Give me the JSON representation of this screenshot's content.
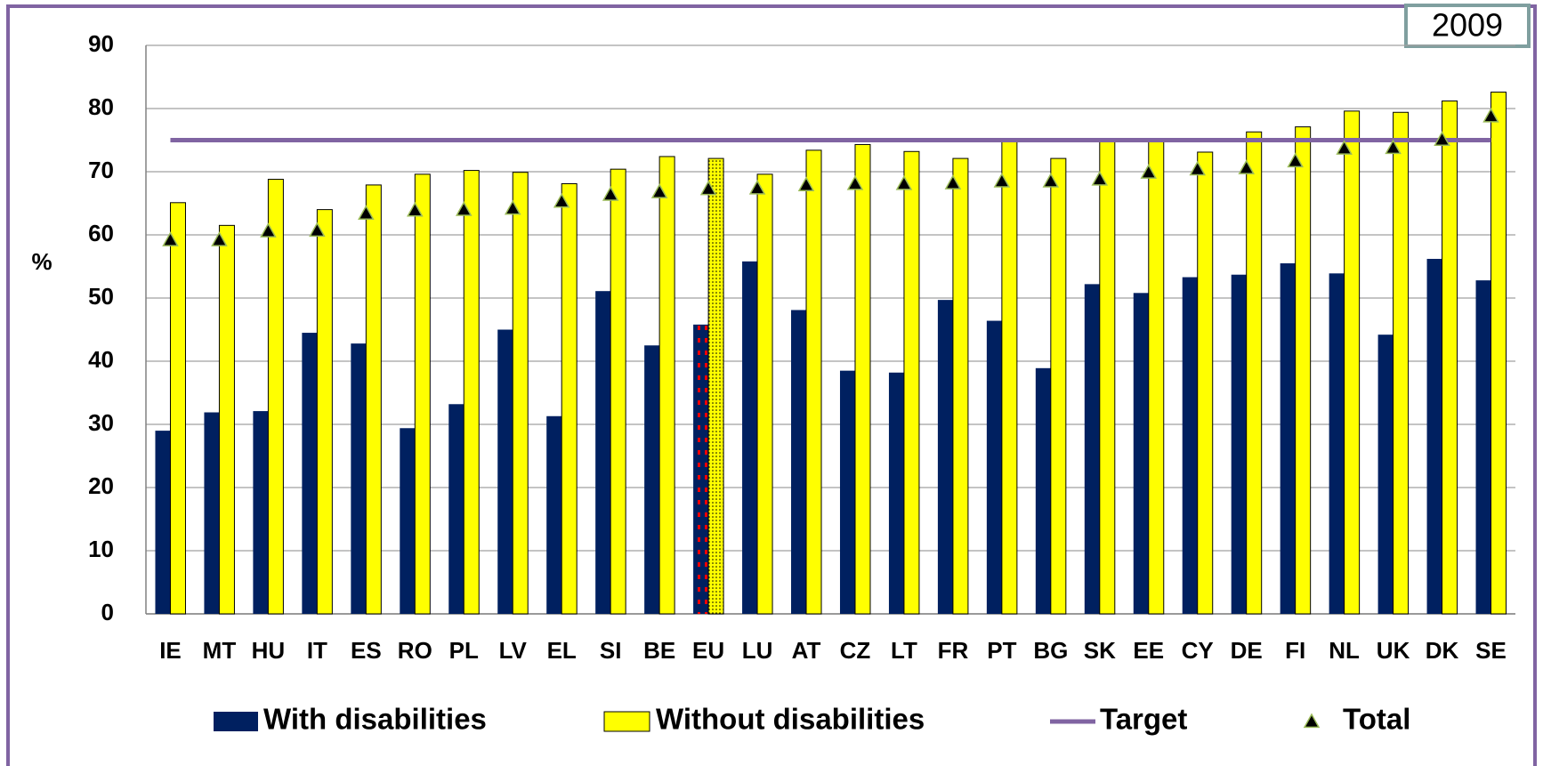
{
  "chart_data": {
    "type": "bar",
    "year_label": "2009",
    "y_label": "%",
    "categories": [
      "IE",
      "MT",
      "HU",
      "IT",
      "ES",
      "RO",
      "PL",
      "LV",
      "EL",
      "SI",
      "BE",
      "EU",
      "LU",
      "AT",
      "CZ",
      "LT",
      "FR",
      "PT",
      "BG",
      "SK",
      "EE",
      "CY",
      "DE",
      "FI",
      "NL",
      "UK",
      "DK",
      "SE"
    ],
    "patterned_category": "EU",
    "series": [
      {
        "name": "With disabilities",
        "color": "#002060",
        "values": [
          29.0,
          31.9,
          32.1,
          44.5,
          42.8,
          29.4,
          33.2,
          45.0,
          31.3,
          51.1,
          42.5,
          45.8,
          55.8,
          48.1,
          38.5,
          38.2,
          49.7,
          46.4,
          38.9,
          52.2,
          50.8,
          53.3,
          53.7,
          55.5,
          53.9,
          44.2,
          56.2,
          52.8
        ]
      },
      {
        "name": "Without disabilities",
        "color": "#ffff00",
        "values": [
          65.1,
          61.5,
          68.8,
          64.0,
          67.9,
          69.6,
          70.2,
          69.9,
          68.1,
          70.4,
          72.4,
          72.1,
          69.6,
          73.4,
          74.3,
          73.2,
          72.1,
          75.1,
          72.1,
          75.1,
          75.1,
          73.1,
          76.3,
          77.1,
          79.6,
          79.4,
          81.2,
          82.6
        ]
      },
      {
        "name": "Total",
        "color": "#000000",
        "marker": "triangle",
        "values": [
          59.2,
          59.2,
          60.6,
          60.7,
          63.4,
          63.9,
          64.0,
          64.2,
          65.3,
          66.4,
          66.8,
          67.3,
          67.4,
          67.9,
          68.1,
          68.1,
          68.2,
          68.5,
          68.5,
          68.8,
          69.9,
          70.4,
          70.6,
          71.7,
          73.7,
          73.8,
          75.1,
          78.8
        ]
      }
    ],
    "target": {
      "name": "Target",
      "value": 75,
      "color": "#8064a2"
    },
    "ylim": [
      0,
      90
    ],
    "yticks": [
      0,
      10,
      20,
      30,
      40,
      50,
      60,
      70,
      80,
      90
    ],
    "grid": true
  }
}
